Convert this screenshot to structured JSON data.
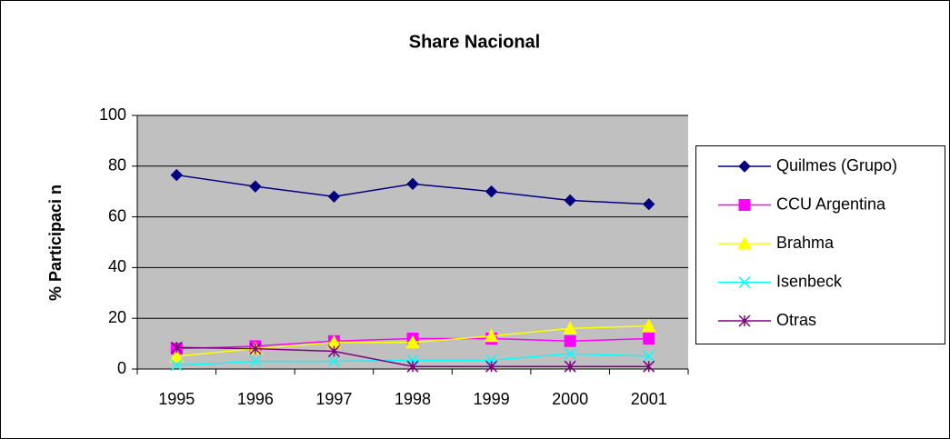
{
  "chart_data": {
    "type": "line",
    "title": "Share Nacional",
    "y_label": "% Participaci n",
    "categories": [
      "1995",
      "1996",
      "1997",
      "1998",
      "1999",
      "2000",
      "2001"
    ],
    "series": [
      {
        "name": "Quilmes (Grupo)",
        "color": "#000080",
        "marker": "diamond",
        "values": [
          76.5,
          72,
          68,
          73,
          70,
          66.5,
          65
        ]
      },
      {
        "name": "CCU Argentina",
        "color": "#ff00ff",
        "marker": "square",
        "values": [
          8,
          9,
          11,
          12,
          12,
          11,
          12
        ]
      },
      {
        "name": "Brahma",
        "color": "#ffff00",
        "marker": "triangle",
        "values": [
          5,
          8,
          10.5,
          10.5,
          13,
          16,
          17
        ]
      },
      {
        "name": "Isenbeck",
        "color": "#00ffff",
        "marker": "x",
        "values": [
          1.5,
          3,
          3,
          3.5,
          3.5,
          6,
          5
        ]
      },
      {
        "name": "Otras",
        "color": "#800080",
        "marker": "asterisk",
        "values": [
          8.5,
          8,
          7,
          1,
          1,
          1,
          1
        ]
      }
    ],
    "ylim": [
      0,
      100
    ],
    "yticks": [
      0,
      20,
      40,
      60,
      80,
      100
    ],
    "grid": true,
    "plot_background": "#c0c0c0",
    "legend": "right"
  }
}
